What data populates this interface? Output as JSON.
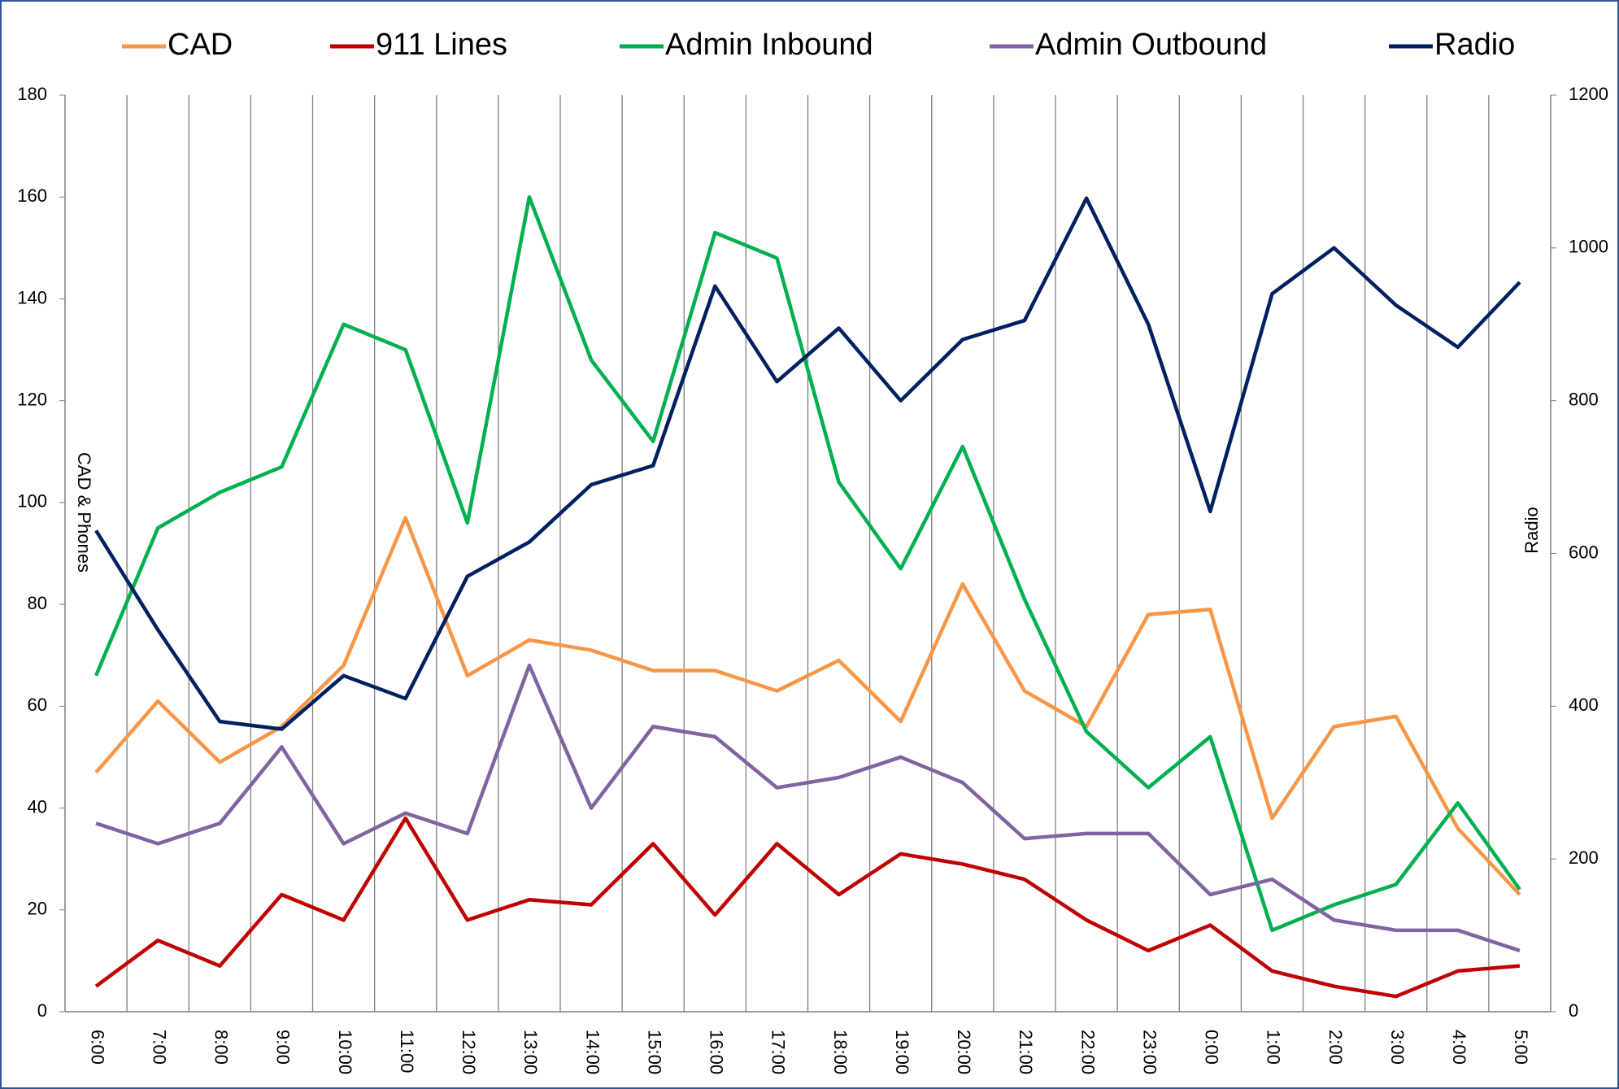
{
  "chart_data": {
    "type": "line",
    "categories": [
      "6:00",
      "7:00",
      "8:00",
      "9:00",
      "10:00",
      "11:00",
      "12:00",
      "13:00",
      "14:00",
      "15:00",
      "16:00",
      "17:00",
      "18:00",
      "19:00",
      "20:00",
      "21:00",
      "22:00",
      "23:00",
      "0:00",
      "1:00",
      "2:00",
      "3:00",
      "4:00",
      "5:00"
    ],
    "series": [
      {
        "name": "CAD",
        "color": "#f79646",
        "values": [
          47,
          61,
          49,
          56,
          68,
          97,
          66,
          73,
          71,
          67,
          67,
          63,
          69,
          57,
          84,
          63,
          56,
          78,
          79,
          38,
          56,
          58,
          36,
          23
        ]
      },
      {
        "name": "911 Lines",
        "color": "#c00000",
        "values": [
          5,
          14,
          9,
          23,
          18,
          38,
          18,
          22,
          21,
          33,
          19,
          33,
          23,
          31,
          29,
          26,
          18,
          12,
          17,
          8,
          5,
          3,
          8,
          9
        ]
      },
      {
        "name": "Admin Inbound",
        "color": "#00b050",
        "values": [
          66,
          95,
          102,
          107,
          135,
          130,
          96,
          160,
          128,
          112,
          153,
          148,
          104,
          87,
          111,
          81,
          55,
          44,
          54,
          16,
          21,
          25,
          41,
          24
        ]
      },
      {
        "name": "Admin Outbound",
        "color": "#8064a2",
        "values": [
          37,
          33,
          37,
          52,
          33,
          39,
          35,
          68,
          40,
          56,
          54,
          44,
          46,
          50,
          45,
          34,
          35,
          35,
          23,
          26,
          18,
          16,
          16,
          12
        ]
      },
      {
        "name": "Radio",
        "color": "#002060",
        "axis": "y2",
        "values": [
          630,
          500,
          380,
          370,
          440,
          410,
          570,
          615,
          690,
          715,
          950,
          825,
          895,
          800,
          880,
          905,
          1065,
          900,
          655,
          940,
          1000,
          925,
          870,
          955
        ]
      }
    ],
    "ylabel": "CAD & Phones",
    "y2label": "Radio",
    "ylim": [
      0,
      180
    ],
    "yticks": [
      0,
      20,
      40,
      60,
      80,
      100,
      120,
      140,
      160,
      180
    ],
    "y2lim": [
      0,
      1200
    ],
    "y2ticks": [
      0,
      200,
      400,
      600,
      800,
      1000,
      1200
    ],
    "grid": "x",
    "legend": "top"
  }
}
